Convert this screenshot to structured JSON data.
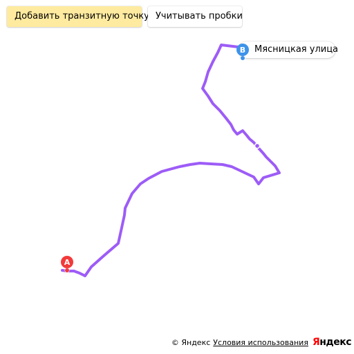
{
  "controls": {
    "add_transit_label": "Добавить транзитную точку",
    "traffic_label": "Учитывать пробки"
  },
  "route": {
    "color": "#9d5cf7",
    "start_marker_letter": "A",
    "start_marker_color": "#f33a3a",
    "end_marker_letter": "B",
    "end_marker_color": "#3d93ea",
    "end_label": "Мясницкая улица"
  },
  "footer": {
    "copyright": "© Яндекс",
    "terms_link": "Условия использования",
    "logo_first": "Я",
    "logo_rest": "ндекс"
  }
}
